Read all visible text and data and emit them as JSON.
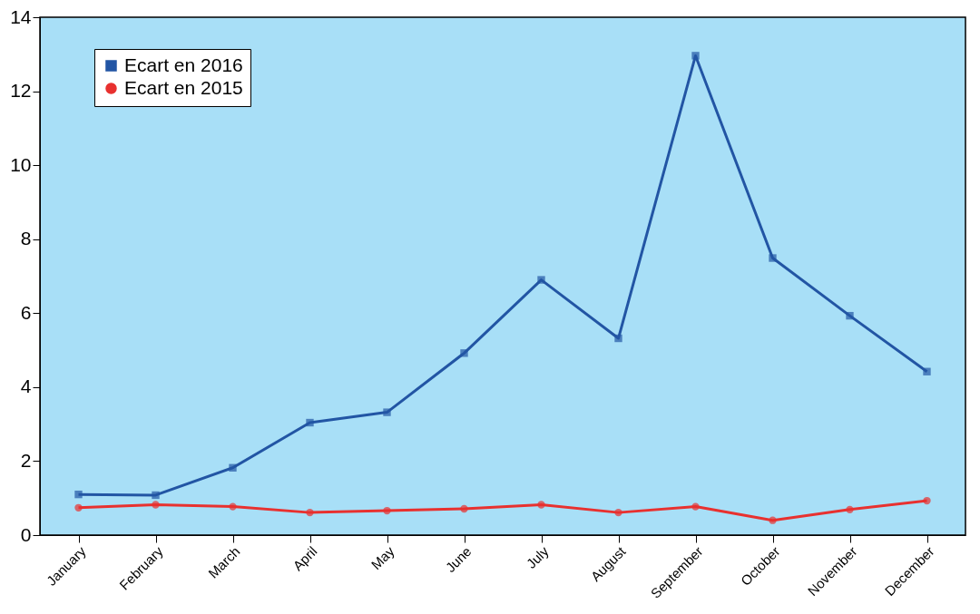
{
  "chart_data": {
    "type": "line",
    "categories": [
      "January",
      "February",
      "March",
      "April",
      "May",
      "June",
      "July",
      "August",
      "September",
      "October",
      "November",
      "December"
    ],
    "series": [
      {
        "name": "Ecart en 2016",
        "color": "#2255a4",
        "marker": "square",
        "values": [
          1.1,
          1.08,
          1.82,
          3.04,
          3.32,
          4.92,
          6.9,
          5.32,
          12.96,
          7.49,
          5.93,
          4.42
        ]
      },
      {
        "name": "Ecart en 2015",
        "color": "#e8312f",
        "marker": "circle",
        "values": [
          0.74,
          0.82,
          0.77,
          0.61,
          0.66,
          0.71,
          0.82,
          0.61,
          0.77,
          0.4,
          0.69,
          0.93
        ]
      }
    ],
    "ylim": [
      0,
      14
    ],
    "yticks": [
      0,
      2,
      4,
      6,
      8,
      10,
      12,
      14
    ],
    "grid": false,
    "legend": "top left",
    "line_style": "solid"
  }
}
